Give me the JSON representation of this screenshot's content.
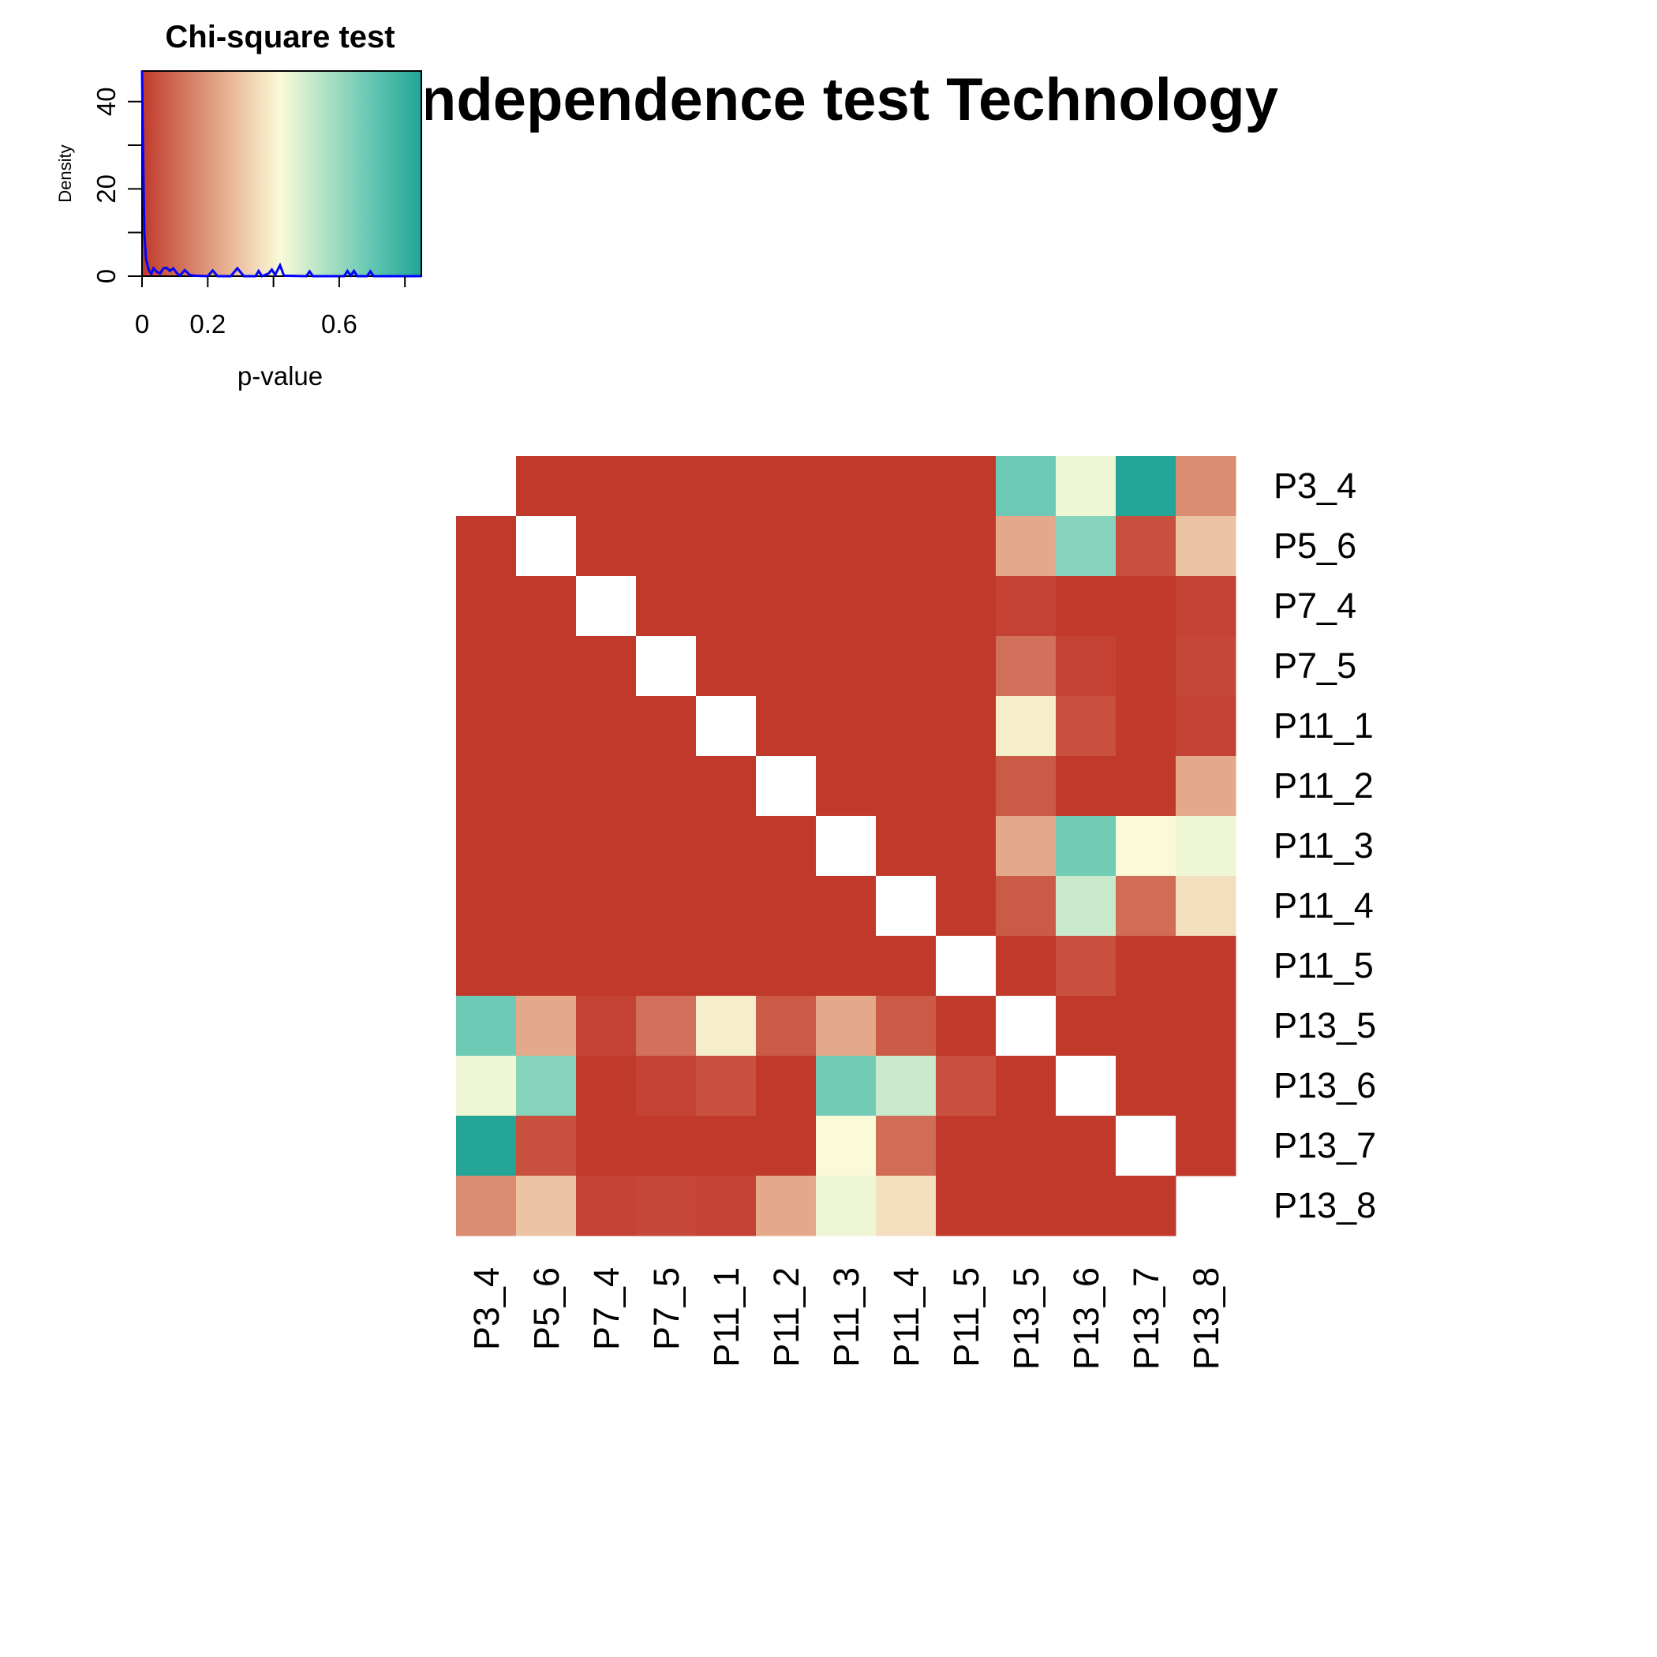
{
  "chart_data": {
    "type": "heatmap",
    "title": "ndependence test Technology",
    "labels": [
      "P3_4",
      "P5_6",
      "P7_4",
      "P7_5",
      "P11_1",
      "P11_2",
      "P11_3",
      "P11_4",
      "P11_5",
      "P13_5",
      "P13_6",
      "P13_7",
      "P13_8"
    ],
    "value_label": "p-value",
    "color_scale": {
      "low": "#C0392B",
      "mid": "#FAFAD8",
      "high": "#21A396",
      "stops": [
        {
          "v": 0.0,
          "c": "#C0392B"
        },
        {
          "v": 0.25,
          "c": "#E6AE8E"
        },
        {
          "v": 0.42,
          "c": "#FAFAD8"
        },
        {
          "v": 0.7,
          "c": "#62C6B1"
        },
        {
          "v": 0.85,
          "c": "#21A396"
        }
      ]
    },
    "matrix": [
      [
        null,
        0,
        0,
        0,
        0,
        0,
        0,
        0,
        0,
        0.68,
        0.44,
        0.84,
        0.18
      ],
      [
        0,
        null,
        0,
        0,
        0,
        0,
        0,
        0,
        0,
        0.24,
        0.63,
        0.05,
        0.3
      ],
      [
        0,
        0,
        null,
        0,
        0,
        0,
        0,
        0,
        0,
        0.02,
        0,
        0,
        0.02
      ],
      [
        0,
        0,
        0,
        null,
        0,
        0,
        0,
        0,
        0,
        0.12,
        0.02,
        0,
        0.03
      ],
      [
        0,
        0,
        0,
        0,
        null,
        0,
        0,
        0,
        0,
        0.39,
        0.05,
        0,
        0.02
      ],
      [
        0,
        0,
        0,
        0,
        0,
        null,
        0,
        0,
        0,
        0.07,
        0,
        0,
        0.24
      ],
      [
        0,
        0,
        0,
        0,
        0,
        0,
        null,
        0,
        0,
        0.24,
        0.67,
        0.42,
        0.44
      ],
      [
        0,
        0,
        0,
        0,
        0,
        0,
        0,
        null,
        0,
        0.07,
        0.51,
        0.11,
        0.36
      ],
      [
        0,
        0,
        0,
        0,
        0,
        0,
        0,
        0,
        null,
        0,
        0.05,
        0,
        0
      ],
      [
        0.68,
        0.24,
        0.02,
        0.12,
        0.39,
        0.07,
        0.24,
        0.07,
        0,
        null,
        0,
        0,
        0
      ],
      [
        0.44,
        0.63,
        0,
        0.02,
        0.05,
        0,
        0.67,
        0.51,
        0.05,
        0,
        null,
        0,
        0
      ],
      [
        0.84,
        0.05,
        0,
        0,
        0,
        0,
        0.42,
        0.11,
        0,
        0,
        0,
        null,
        0
      ],
      [
        0.18,
        0.3,
        0.02,
        0.03,
        0.02,
        0.24,
        0.44,
        0.36,
        0,
        0,
        0,
        0,
        null
      ]
    ],
    "blank_cells": [
      [
        0,
        0
      ],
      [
        12,
        12
      ]
    ],
    "color_key": {
      "title": "Chi-square test",
      "xlabel": "p-value",
      "ylabel": "Density",
      "x_ticks": [
        "0",
        "0.2",
        "0.6"
      ],
      "x_tick_values": [
        0,
        0.2,
        0.6
      ],
      "x_minor_ticks": [
        0,
        0.2,
        0.4,
        0.6,
        0.8
      ],
      "y_ticks": [
        "0",
        "20",
        "40"
      ],
      "y_tick_values": [
        0,
        20,
        40
      ],
      "x_range": [
        0,
        0.85
      ],
      "y_range": [
        0,
        47
      ],
      "density_color": "#0000FF",
      "density_curve": [
        [
          0.0,
          47
        ],
        [
          0.003,
          30
        ],
        [
          0.007,
          10
        ],
        [
          0.012,
          4
        ],
        [
          0.02,
          1.5
        ],
        [
          0.028,
          0.5
        ],
        [
          0.035,
          1.8
        ],
        [
          0.045,
          1.0
        ],
        [
          0.055,
          0.6
        ],
        [
          0.065,
          1.8
        ],
        [
          0.075,
          1.9
        ],
        [
          0.085,
          1.2
        ],
        [
          0.095,
          1.8
        ],
        [
          0.105,
          0.8
        ],
        [
          0.115,
          0.1
        ],
        [
          0.13,
          1.4
        ],
        [
          0.145,
          0.3
        ],
        [
          0.16,
          0.1
        ],
        [
          0.2,
          0
        ],
        [
          0.215,
          1.3
        ],
        [
          0.23,
          0
        ],
        [
          0.27,
          0
        ],
        [
          0.29,
          1.8
        ],
        [
          0.31,
          0
        ],
        [
          0.345,
          0
        ],
        [
          0.355,
          1.2
        ],
        [
          0.365,
          0
        ],
        [
          0.385,
          0.6
        ],
        [
          0.395,
          1.5
        ],
        [
          0.405,
          0.3
        ],
        [
          0.42,
          2.5
        ],
        [
          0.432,
          0.1
        ],
        [
          0.5,
          0
        ],
        [
          0.51,
          1.1
        ],
        [
          0.52,
          0
        ],
        [
          0.615,
          0
        ],
        [
          0.625,
          1.2
        ],
        [
          0.635,
          0.1
        ],
        [
          0.645,
          1.2
        ],
        [
          0.655,
          0
        ],
        [
          0.685,
          0
        ],
        [
          0.695,
          1.1
        ],
        [
          0.705,
          0
        ],
        [
          0.85,
          0
        ]
      ]
    }
  }
}
